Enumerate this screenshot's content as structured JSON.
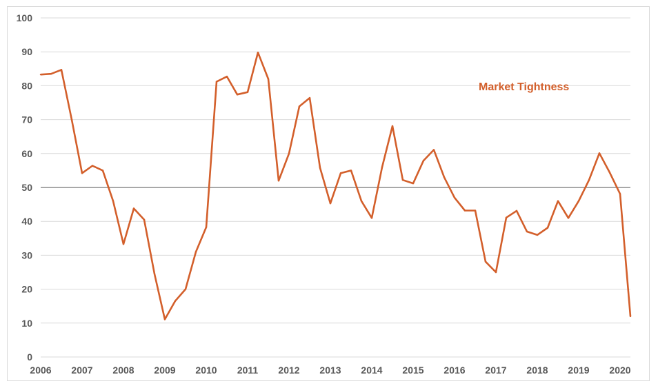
{
  "chart_data": {
    "type": "line",
    "title": "",
    "xlabel": "",
    "ylabel": "",
    "ylim": [
      0,
      100
    ],
    "yticks": [
      0,
      10,
      20,
      30,
      40,
      50,
      60,
      70,
      80,
      90,
      100
    ],
    "xlim": [
      2006,
      2020.25
    ],
    "xticks": [
      "2006",
      "2007",
      "2008",
      "2009",
      "2010",
      "2011",
      "2012",
      "2013",
      "2014",
      "2015",
      "2016",
      "2017",
      "2018",
      "2019",
      "2020"
    ],
    "reference_line": 50,
    "grid": true,
    "colors": {
      "series": "#d35f2b",
      "grid": "#d9d9d9",
      "reference": "#8c8c8c"
    },
    "series": [
      {
        "name": "Market Tightness",
        "x": [
          "2006 Q1",
          "2006 Q2",
          "2006 Q3",
          "2006 Q4",
          "2007 Q1",
          "2007 Q2",
          "2007 Q3",
          "2007 Q4",
          "2008 Q1",
          "2008 Q2",
          "2008 Q3",
          "2008 Q4",
          "2009 Q1",
          "2009 Q2",
          "2009 Q3",
          "2009 Q4",
          "2010 Q1",
          "2010 Q2",
          "2010 Q3",
          "2010 Q4",
          "2011 Q1",
          "2011 Q2",
          "2011 Q3",
          "2011 Q4",
          "2012 Q1",
          "2012 Q2",
          "2012 Q3",
          "2012 Q4",
          "2013 Q1",
          "2013 Q2",
          "2013 Q3",
          "2013 Q4",
          "2014 Q1",
          "2014 Q2",
          "2014 Q3",
          "2014 Q4",
          "2015 Q1",
          "2015 Q2",
          "2015 Q3",
          "2015 Q4",
          "2016 Q1",
          "2016 Q2",
          "2016 Q3",
          "2016 Q4",
          "2017 Q1",
          "2017 Q2",
          "2017 Q3",
          "2017 Q4",
          "2018 Q1",
          "2018 Q2",
          "2018 Q3",
          "2018 Q4",
          "2019 Q1",
          "2019 Q2",
          "2019 Q3",
          "2019 Q4",
          "2020 Q1",
          "2020 Q2"
        ],
        "values": [
          83.3,
          83.5,
          84.7,
          70.0,
          54.2,
          56.4,
          55.0,
          46.0,
          33.3,
          43.8,
          40.5,
          24.5,
          11.1,
          16.5,
          20.0,
          31.0,
          38.3,
          81.2,
          82.7,
          77.4,
          78.1,
          89.8,
          82.0,
          52.0,
          60.0,
          73.9,
          76.4,
          55.8,
          45.3,
          54.2,
          55.0,
          46.0,
          41.0,
          56.0,
          68.1,
          52.2,
          51.2,
          57.9,
          61.1,
          53.0,
          47.0,
          43.2,
          43.2,
          28.1,
          25.0,
          41.1,
          43.1,
          37.0,
          36.0,
          38.1,
          46.0,
          41.0,
          46.0,
          52.2,
          60.1,
          54.4,
          48.1,
          12.0
        ]
      }
    ]
  }
}
